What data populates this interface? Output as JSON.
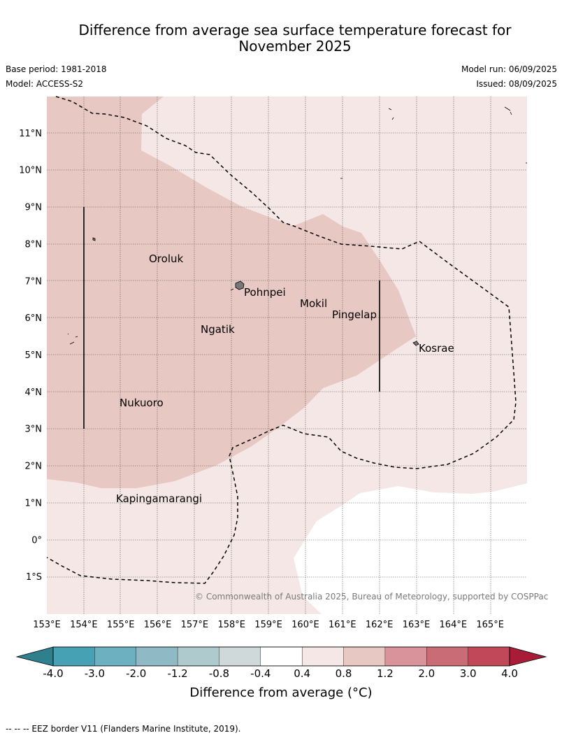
{
  "title_line1": "Difference from average sea surface temperature forecast for",
  "title_line2": "November 2025",
  "base_period": "Base period: 1981-2018",
  "model": "Model: ACCESS-S2",
  "model_run": "Model run: 06/09/2025",
  "issued": "Issued: 08/09/2025",
  "copyright": "© Commonwealth of Australia 2025, Bureau of Meteorology, supported by COSPPac",
  "map": {
    "lon_range": [
      153,
      166
    ],
    "lat_range": [
      -2,
      12
    ],
    "lon_ticks": [
      "153°E",
      "154°E",
      "155°E",
      "156°E",
      "157°E",
      "158°E",
      "159°E",
      "160°E",
      "161°E",
      "162°E",
      "163°E",
      "164°E",
      "165°E"
    ],
    "lat_ticks": [
      {
        "lat": 11,
        "label": "11°N"
      },
      {
        "lat": 10,
        "label": "10°N"
      },
      {
        "lat": 9,
        "label": "9°N"
      },
      {
        "lat": 8,
        "label": "8°N"
      },
      {
        "lat": 7,
        "label": "7°N"
      },
      {
        "lat": 6,
        "label": "6°N"
      },
      {
        "lat": 5,
        "label": "5°N"
      },
      {
        "lat": 4,
        "label": "4°N"
      },
      {
        "lat": 3,
        "label": "3°N"
      },
      {
        "lat": 2,
        "label": "2°N"
      },
      {
        "lat": 1,
        "label": "1°N"
      },
      {
        "lat": 0,
        "label": "0°"
      },
      {
        "lat": -1,
        "label": "1°S"
      }
    ],
    "places": [
      {
        "name": "Oroluk",
        "lon": 155.8,
        "lat": 7.6
      },
      {
        "name": "Pohnpei",
        "lon": 158.3,
        "lat": 6.9
      },
      {
        "name": "Mokil",
        "lon": 159.8,
        "lat": 6.7
      },
      {
        "name": "Pingelap",
        "lon": 160.7,
        "lat": 6.2
      },
      {
        "name": "Ngatik",
        "lon": 157.1,
        "lat": 5.8
      },
      {
        "name": "Kosrae",
        "lon": 163.0,
        "lat": 5.3
      },
      {
        "name": "Nukuoro",
        "lon": 154.9,
        "lat": 3.8
      },
      {
        "name": "Kapingamarangi",
        "lon": 154.8,
        "lat": 1.1
      }
    ],
    "anomaly_classes": {
      "domain": "0.4 to 0.8",
      "main_region": "0.8 to 1.2",
      "southeast_region": "-0.4 to 0.4"
    },
    "colors": {
      "domain": "#f5e7e6",
      "main_region": "#e8c8c3",
      "southeast_region": "#ffffff"
    }
  },
  "colorbar": {
    "ticks": [
      "-4.0",
      "-3.0",
      "-2.0",
      "-1.2",
      "-0.8",
      "-0.4",
      "0.4",
      "0.8",
      "1.2",
      "2.0",
      "3.0",
      "4.0"
    ],
    "colors": [
      "#46a1b4",
      "#6db0c0",
      "#8fbac5",
      "#aecacd",
      "#d0d9d9",
      "#ffffff",
      "#f5e7e6",
      "#e8c8c3",
      "#d9939a",
      "#ca6c76",
      "#c04858"
    ],
    "under_color": "#2f7f8d",
    "over_color": "#a91c37",
    "label": "Difference from average ($^\\circ$C)",
    "label_display": "Difference from average (°C)"
  },
  "footer": "-- -- -- EEZ border V11 (Flanders Marine Institute, 2019)."
}
